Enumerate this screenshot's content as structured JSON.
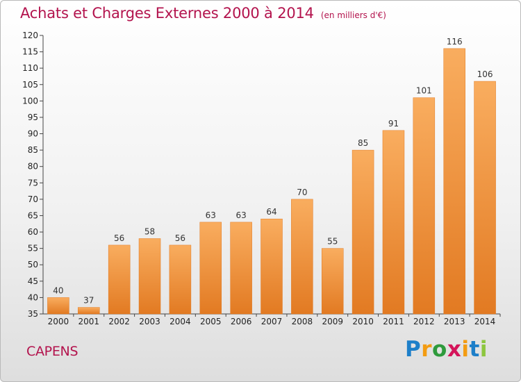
{
  "title": "Achats et Charges Externes 2000 à 2014",
  "unit": "(en milliers d'€)",
  "commune": "CAPENS",
  "logo": {
    "letters": [
      "P",
      "r",
      "o",
      "x",
      "i",
      "t",
      "i"
    ],
    "colors": [
      "#1d7fc9",
      "#f39c12",
      "#2e9a3c",
      "#d4145a",
      "#f39c12",
      "#1d7fc9",
      "#8dc63f"
    ]
  },
  "colors": {
    "bar_light": "#f9ad5f",
    "bar_dark": "#e27a22",
    "accent": "#b3134d"
  },
  "chart_data": {
    "type": "bar",
    "title": "Achats et Charges Externes 2000 à 2014",
    "subtitle": "(en milliers d'€)",
    "categories": [
      "2000",
      "2001",
      "2002",
      "2003",
      "2004",
      "2005",
      "2006",
      "2007",
      "2008",
      "2009",
      "2010",
      "2011",
      "2012",
      "2013",
      "2014"
    ],
    "values": [
      40,
      37,
      56,
      58,
      56,
      63,
      63,
      64,
      70,
      55,
      85,
      91,
      101,
      116,
      106
    ],
    "ylim": [
      35,
      120
    ],
    "yticks": [
      35,
      40,
      45,
      50,
      55,
      60,
      65,
      70,
      75,
      80,
      85,
      90,
      95,
      100,
      105,
      110,
      115,
      120
    ],
    "grid": false,
    "legend": "none"
  }
}
